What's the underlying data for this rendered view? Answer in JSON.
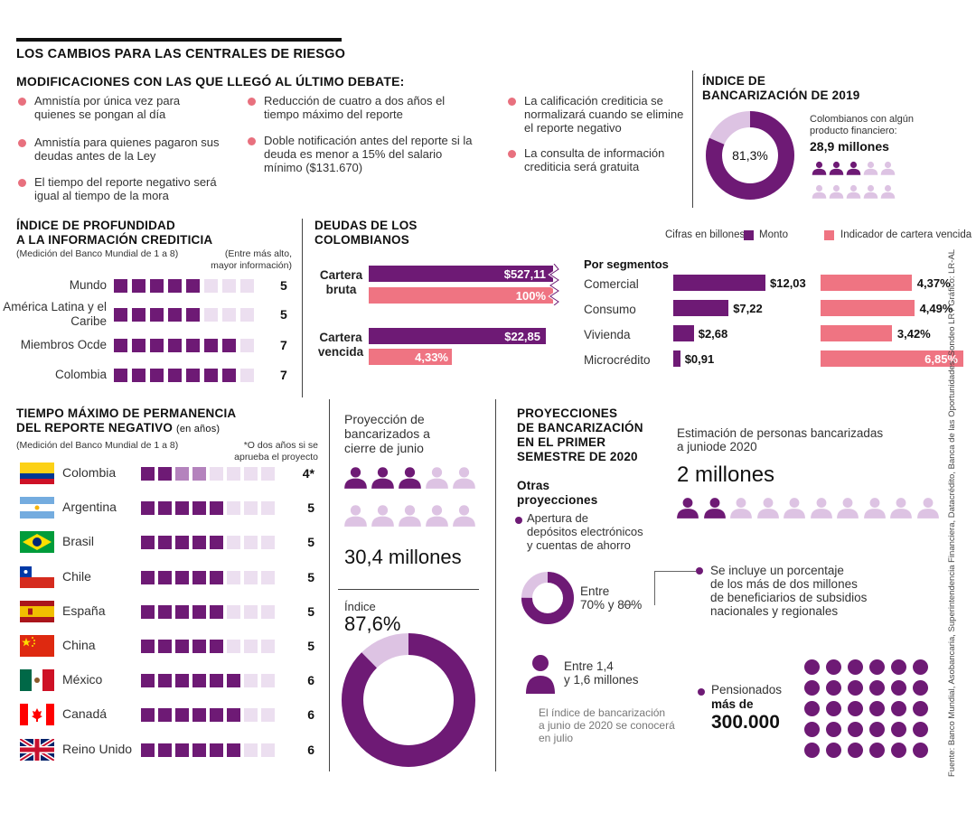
{
  "title": "LOS CAMBIOS PARA LAS CENTRALES DE RIESGO",
  "modificaciones": {
    "heading": "MODIFICACIONES CON LAS QUE LLEGÓ AL ÚLTIMO DEBATE:",
    "items": [
      "Amnistía por única vez para quienes se pongan al día",
      "Amnistía para quienes pagaron sus deudas antes de la Ley",
      "El tiempo del reporte negativo será igual al tiempo de la mora",
      "Reducción de cuatro a dos años el tiempo máximo del reporte",
      "Doble notificación antes del reporte si la deuda es menor a 15% del salario mínimo ($131.670)",
      "La calificación crediticia se normalizará  cuando se elimine el reporte negativo",
      "La consulta de información crediticia será gratuita"
    ]
  },
  "bancarizacion2019": {
    "heading_1": "ÍNDICE DE",
    "heading_2": "BANCARIZACIÓN DE 2019",
    "donut_label": "81,3%",
    "donut_fraction": 0.813,
    "note_1": "Colombianos con algún",
    "note_2": "producto financiero:",
    "value": "28,9 millones",
    "people_filled": 3,
    "people_total": 10
  },
  "profundidad": {
    "heading_1": "ÍNDICE DE PROFUNDIDAD",
    "heading_2": "A LA INFORMACIÓN CREDITICIA",
    "sub": "(Medición del Banco Mundial de 1 a 8)",
    "note_1": "(Entre más alto,",
    "note_2": "mayor información)",
    "rows": [
      {
        "label": "Mundo",
        "value": "5",
        "score": 5
      },
      {
        "label": "América Latina y el Caribe",
        "value": "5",
        "score": 5
      },
      {
        "label": "Miembros Ocde",
        "value": "7",
        "score": 7
      },
      {
        "label": "Colombia",
        "value": "7",
        "score": 7
      }
    ]
  },
  "deudas": {
    "heading_1": "DEUDAS DE LOS",
    "heading_2": "COLOMBIANOS",
    "cifras": "Cifras en billones",
    "legend_monto": "Monto",
    "legend_indicador": "Indicador de cartera vencida",
    "cartera_bruta_1": "Cartera",
    "cartera_bruta_2": "bruta",
    "cb_monto": "$527,11",
    "cb_pct": "100%",
    "cartera_vencida_1": "Cartera",
    "cartera_vencida_2": "vencida",
    "cv_monto": "$22,85",
    "cv_pct": "4,33%",
    "segmentos_heading": "Por segmentos",
    "segmentos": [
      {
        "label": "Comercial",
        "monto": "$12,03",
        "monto_num": 12.03,
        "pct": "4,37%",
        "pct_num": 4.37
      },
      {
        "label": "Consumo",
        "monto": "$7,22",
        "monto_num": 7.22,
        "pct": "4,49%",
        "pct_num": 4.49
      },
      {
        "label": "Vivienda",
        "monto": "$2,68",
        "monto_num": 2.68,
        "pct": "3,42%",
        "pct_num": 3.42
      },
      {
        "label": "Microcrédito",
        "monto": "$0,91",
        "monto_num": 0.91,
        "pct": "6,85%",
        "pct_num": 6.85
      }
    ]
  },
  "tiempo": {
    "heading_1": "TIEMPO MÁXIMO DE PERMANENCIA",
    "heading_2": "DEL REPORTE NEGATIVO",
    "heading_unit": "(en años)",
    "sub": "(Medición del Banco Mundial de 1 a 8)",
    "note_1": "*O dos años si se",
    "note_2": "aprueba el proyecto",
    "rows": [
      {
        "label": "Colombia",
        "value": "4*",
        "score": 4,
        "flag": "colombia"
      },
      {
        "label": "Argentina",
        "value": "5",
        "score": 5,
        "flag": "argentina"
      },
      {
        "label": "Brasil",
        "value": "5",
        "score": 5,
        "flag": "brasil"
      },
      {
        "label": "Chile",
        "value": "5",
        "score": 5,
        "flag": "chile"
      },
      {
        "label": "España",
        "value": "5",
        "score": 5,
        "flag": "espana"
      },
      {
        "label": "China",
        "value": "5",
        "score": 5,
        "flag": "china"
      },
      {
        "label": "México",
        "value": "6",
        "score": 6,
        "flag": "mexico"
      },
      {
        "label": "Canadá",
        "value": "6",
        "score": 6,
        "flag": "canada"
      },
      {
        "label": "Reino Unido",
        "value": "6",
        "score": 6,
        "flag": "reino-unido"
      }
    ]
  },
  "proyeccion_junio": {
    "text_1": "Proyección de",
    "text_2": "bancarizados a",
    "text_3": "cierre de junio",
    "value": "30,4 millones",
    "people_filled": 3,
    "people_total": 10,
    "indice_label": "Índice",
    "indice_value": "87,6%",
    "indice_fraction": 0.876
  },
  "proyecciones2020": {
    "heading_1": "PROYECCIONES",
    "heading_2": "DE BANCARIZACIÓN",
    "heading_3": "EN EL  PRIMER",
    "heading_4": "SEMESTRE DE 2020",
    "otras_1": "Otras",
    "otras_2": "proyecciones",
    "apertura_1": "Apertura de",
    "apertura_2": "depósitos electrónicos",
    "apertura_3": "y cuentas de ahorro",
    "entre_1": "Entre",
    "entre_2": "70% y 80%",
    "entre_fraction": 0.75,
    "personas_1": "Entre 1,4",
    "personas_2": "y 1,6 millones",
    "nota_1": "El índice de bancarización",
    "nota_2": "a junio de 2020 se conocerá",
    "nota_3": "en julio",
    "estimacion_1": "Estimación de personas bancarizadas",
    "estimacion_2": "a juniode 2020",
    "estimacion_value": "2 millones",
    "people_filled": 2,
    "people_total": 10,
    "subsidios_1": "Se incluye un porcentaje",
    "subsidios_2": "de los más de dos millones",
    "subsidios_3": "de beneficiarios de subsidios",
    "subsidios_4": "nacionales y regionales",
    "pensionados_1": "Pensionados",
    "pensionados_2": "más de",
    "pensionados_value": "300.000"
  },
  "fuente": "Fuente: Banco Mundial, Asobancaria, Superintendencia Financiera, Datacrédito, Banca de las Oportunidades, Sondeo LR / Gráfico: LR-AL",
  "colors": {
    "purple": "#6e1a75",
    "light_purple": "#ddc3e3",
    "pink": "#ef7482",
    "mid_purple": "#b483bd"
  }
}
